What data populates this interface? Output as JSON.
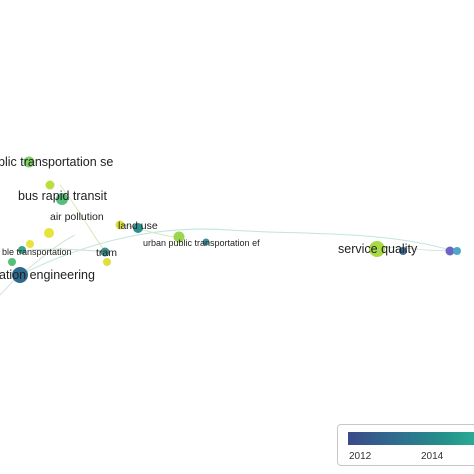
{
  "map": {
    "labels": [
      {
        "id": "public-transportation-se",
        "text": "blic transportation se"
      },
      {
        "id": "bus-rapid-transit",
        "text": "bus rapid transit"
      },
      {
        "id": "air-pollution",
        "text": "air pollution"
      },
      {
        "id": "land-use",
        "text": "land use"
      },
      {
        "id": "urban-public-transportation-ef",
        "text": "urban public transportation ef"
      },
      {
        "id": "tram",
        "text": "tram"
      },
      {
        "id": "public-transportation",
        "text": "ble transportation"
      },
      {
        "id": "transportation-engineering",
        "text": "ation engineering"
      },
      {
        "id": "service-quality",
        "text": "service quality"
      }
    ]
  },
  "legend": {
    "ticks": [
      "2012",
      "2014"
    ],
    "colors": {
      "start": "#3b4a8a",
      "mid": "#24928a",
      "end": "#2cb79a"
    }
  }
}
